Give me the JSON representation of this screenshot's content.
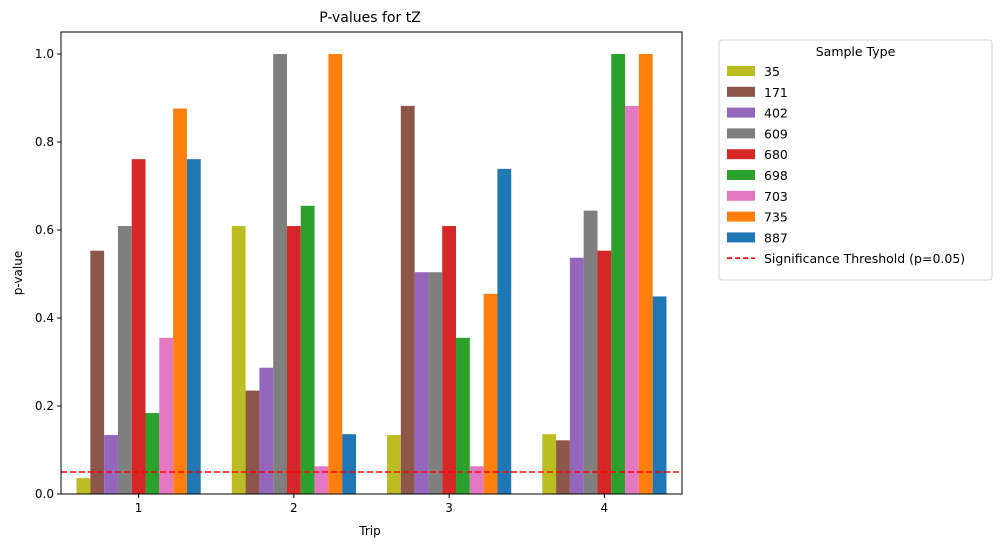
{
  "chart_data": {
    "type": "bar",
    "title": "P-values for tZ",
    "xlabel": "Trip",
    "ylabel": "p-value",
    "categories": [
      "1",
      "2",
      "3",
      "4"
    ],
    "ylim": [
      0,
      1.05
    ],
    "yticks": [
      "0.0",
      "0.2",
      "0.4",
      "0.6",
      "0.8",
      "1.0"
    ],
    "legend_title": "Sample Type",
    "legend_position": "outside-right-top",
    "grid": false,
    "series": [
      {
        "name": "35",
        "color": "#bcbd22",
        "values": [
          0.036,
          0.609,
          0.134,
          0.136
        ]
      },
      {
        "name": "171",
        "color": "#8c564b",
        "values": [
          0.553,
          0.235,
          0.882,
          0.122
        ]
      },
      {
        "name": "402",
        "color": "#9467bd",
        "values": [
          0.134,
          0.287,
          0.504,
          0.537
        ]
      },
      {
        "name": "609",
        "color": "#7f7f7f",
        "values": [
          0.609,
          1.0,
          0.504,
          0.644
        ]
      },
      {
        "name": "680",
        "color": "#d62728",
        "values": [
          0.761,
          0.609,
          0.609,
          0.553
        ]
      },
      {
        "name": "698",
        "color": "#2ca02c",
        "values": [
          0.184,
          0.655,
          0.355,
          1.0
        ]
      },
      {
        "name": "703",
        "color": "#e377c2",
        "values": [
          0.355,
          0.063,
          0.063,
          0.882
        ]
      },
      {
        "name": "735",
        "color": "#ff7f0e",
        "values": [
          0.876,
          1.0,
          0.455,
          1.0
        ]
      },
      {
        "name": "887",
        "color": "#1f77b4",
        "values": [
          0.761,
          0.136,
          0.739,
          0.449
        ]
      }
    ],
    "threshold": {
      "label": "Significance Threshold (p=0.05)",
      "value": 0.05,
      "color": "#ff0000",
      "style": "dashed"
    }
  }
}
